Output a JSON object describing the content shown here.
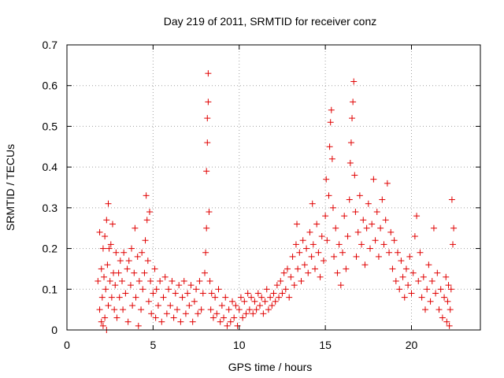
{
  "chart_data": {
    "type": "scatter",
    "title": "Day 219 of 2011, SRMTID for receiver conz",
    "xlabel": "GPS time / hours",
    "ylabel": "SRMTID / TECUs",
    "xlim": [
      0,
      24
    ],
    "ylim": [
      0,
      0.7
    ],
    "xticks": [
      0,
      5,
      10,
      15,
      20
    ],
    "yticks": [
      0,
      0.1,
      0.2,
      0.3,
      0.4,
      0.5,
      0.6,
      0.7
    ],
    "grid": true,
    "marker": "+",
    "color": "#e00000",
    "series": [
      {
        "name": "SRMTID",
        "points": [
          [
            1.8,
            0.12
          ],
          [
            1.9,
            0.05
          ],
          [
            1.9,
            0.24
          ],
          [
            2.0,
            0.02
          ],
          [
            2.0,
            0.15
          ],
          [
            2.05,
            0.08
          ],
          [
            2.1,
            0.2
          ],
          [
            2.1,
            0.01
          ],
          [
            2.15,
            0.13
          ],
          [
            2.2,
            0.03
          ],
          [
            2.2,
            0.23
          ],
          [
            2.25,
            0.1
          ],
          [
            2.3,
            0.27
          ],
          [
            2.3,
            0.0
          ],
          [
            2.35,
            0.16
          ],
          [
            2.4,
            0.31
          ],
          [
            2.4,
            0.06
          ],
          [
            2.45,
            0.2
          ],
          [
            2.5,
            0.12
          ],
          [
            2.55,
            0.21
          ],
          [
            2.6,
            0.08
          ],
          [
            2.65,
            0.26
          ],
          [
            2.7,
            0.14
          ],
          [
            2.75,
            0.05
          ],
          [
            2.8,
            0.11
          ],
          [
            2.85,
            0.19
          ],
          [
            2.9,
            0.03
          ],
          [
            3.0,
            0.14
          ],
          [
            3.05,
            0.08
          ],
          [
            3.1,
            0.17
          ],
          [
            3.2,
            0.12
          ],
          [
            3.25,
            0.05
          ],
          [
            3.3,
            0.19
          ],
          [
            3.4,
            0.09
          ],
          [
            3.5,
            0.15
          ],
          [
            3.55,
            0.02
          ],
          [
            3.6,
            0.17
          ],
          [
            3.7,
            0.11
          ],
          [
            3.75,
            0.2
          ],
          [
            3.8,
            0.06
          ],
          [
            3.9,
            0.14
          ],
          [
            3.95,
            0.25
          ],
          [
            4.0,
            0.08
          ],
          [
            4.1,
            0.18
          ],
          [
            4.15,
            0.01
          ],
          [
            4.2,
            0.12
          ],
          [
            4.3,
            0.05
          ],
          [
            4.35,
            0.19
          ],
          [
            4.4,
            0.1
          ],
          [
            4.5,
            0.14
          ],
          [
            4.55,
            0.22
          ],
          [
            4.6,
            0.33
          ],
          [
            4.65,
            0.27
          ],
          [
            4.7,
            0.17
          ],
          [
            4.75,
            0.07
          ],
          [
            4.8,
            0.29
          ],
          [
            4.85,
            0.12
          ],
          [
            4.9,
            0.04
          ],
          [
            5.0,
            0.09
          ],
          [
            5.1,
            0.15
          ],
          [
            5.15,
            0.03
          ],
          [
            5.2,
            0.1
          ],
          [
            5.3,
            0.06
          ],
          [
            5.4,
            0.12
          ],
          [
            5.5,
            0.02
          ],
          [
            5.6,
            0.08
          ],
          [
            5.7,
            0.13
          ],
          [
            5.8,
            0.04
          ],
          [
            5.9,
            0.1
          ],
          [
            6.0,
            0.06
          ],
          [
            6.1,
            0.12
          ],
          [
            6.2,
            0.03
          ],
          [
            6.3,
            0.09
          ],
          [
            6.4,
            0.05
          ],
          [
            6.5,
            0.11
          ],
          [
            6.6,
            0.02
          ],
          [
            6.7,
            0.08
          ],
          [
            6.8,
            0.12
          ],
          [
            6.9,
            0.04
          ],
          [
            7.0,
            0.09
          ],
          [
            7.1,
            0.06
          ],
          [
            7.2,
            0.11
          ],
          [
            7.3,
            0.02
          ],
          [
            7.4,
            0.07
          ],
          [
            7.5,
            0.1
          ],
          [
            7.6,
            0.04
          ],
          [
            7.7,
            0.12
          ],
          [
            7.8,
            0.05
          ],
          [
            7.9,
            0.09
          ],
          [
            8.0,
            0.14
          ],
          [
            8.05,
            0.19
          ],
          [
            8.1,
            0.25
          ],
          [
            8.1,
            0.39
          ],
          [
            8.15,
            0.46
          ],
          [
            8.15,
            0.52
          ],
          [
            8.2,
            0.56
          ],
          [
            8.2,
            0.63
          ],
          [
            8.25,
            0.29
          ],
          [
            8.3,
            0.12
          ],
          [
            8.35,
            0.05
          ],
          [
            8.4,
            0.09
          ],
          [
            8.5,
            0.03
          ],
          [
            8.6,
            0.08
          ],
          [
            8.7,
            0.04
          ],
          [
            8.8,
            0.1
          ],
          [
            8.9,
            0.02
          ],
          [
            9.0,
            0.06
          ],
          [
            9.1,
            0.03
          ],
          [
            9.2,
            0.08
          ],
          [
            9.3,
            0.01
          ],
          [
            9.4,
            0.05
          ],
          [
            9.5,
            0.02
          ],
          [
            9.6,
            0.07
          ],
          [
            9.7,
            0.03
          ],
          [
            9.8,
            0.06
          ],
          [
            9.9,
            0.01
          ],
          [
            10.0,
            0.05
          ],
          [
            10.1,
            0.08
          ],
          [
            10.2,
            0.03
          ],
          [
            10.3,
            0.07
          ],
          [
            10.4,
            0.04
          ],
          [
            10.5,
            0.09
          ],
          [
            10.6,
            0.05
          ],
          [
            10.7,
            0.08
          ],
          [
            10.8,
            0.04
          ],
          [
            10.9,
            0.07
          ],
          [
            11.0,
            0.05
          ],
          [
            11.1,
            0.09
          ],
          [
            11.2,
            0.06
          ],
          [
            11.3,
            0.08
          ],
          [
            11.4,
            0.04
          ],
          [
            11.5,
            0.07
          ],
          [
            11.6,
            0.1
          ],
          [
            11.7,
            0.05
          ],
          [
            11.8,
            0.08
          ],
          [
            11.9,
            0.06
          ],
          [
            12.0,
            0.09
          ],
          [
            12.1,
            0.07
          ],
          [
            12.2,
            0.11
          ],
          [
            12.3,
            0.08
          ],
          [
            12.4,
            0.12
          ],
          [
            12.5,
            0.09
          ],
          [
            12.6,
            0.14
          ],
          [
            12.7,
            0.1
          ],
          [
            12.8,
            0.15
          ],
          [
            12.9,
            0.08
          ],
          [
            13.0,
            0.13
          ],
          [
            13.1,
            0.18
          ],
          [
            13.2,
            0.11
          ],
          [
            13.3,
            0.21
          ],
          [
            13.35,
            0.26
          ],
          [
            13.4,
            0.15
          ],
          [
            13.5,
            0.19
          ],
          [
            13.6,
            0.12
          ],
          [
            13.7,
            0.22
          ],
          [
            13.8,
            0.16
          ],
          [
            13.9,
            0.2
          ],
          [
            14.0,
            0.14
          ],
          [
            14.1,
            0.24
          ],
          [
            14.2,
            0.18
          ],
          [
            14.25,
            0.31
          ],
          [
            14.3,
            0.21
          ],
          [
            14.4,
            0.15
          ],
          [
            14.5,
            0.26
          ],
          [
            14.6,
            0.19
          ],
          [
            14.7,
            0.13
          ],
          [
            14.8,
            0.23
          ],
          [
            14.9,
            0.17
          ],
          [
            15.0,
            0.28
          ],
          [
            15.05,
            0.37
          ],
          [
            15.1,
            0.22
          ],
          [
            15.2,
            0.33
          ],
          [
            15.25,
            0.45
          ],
          [
            15.3,
            0.51
          ],
          [
            15.35,
            0.54
          ],
          [
            15.4,
            0.42
          ],
          [
            15.45,
            0.3
          ],
          [
            15.5,
            0.18
          ],
          [
            15.6,
            0.25
          ],
          [
            15.7,
            0.14
          ],
          [
            15.8,
            0.21
          ],
          [
            15.9,
            0.11
          ],
          [
            16.0,
            0.19
          ],
          [
            16.1,
            0.28
          ],
          [
            16.2,
            0.15
          ],
          [
            16.3,
            0.23
          ],
          [
            16.4,
            0.32
          ],
          [
            16.45,
            0.41
          ],
          [
            16.5,
            0.46
          ],
          [
            16.55,
            0.52
          ],
          [
            16.6,
            0.56
          ],
          [
            16.65,
            0.61
          ],
          [
            16.7,
            0.38
          ],
          [
            16.75,
            0.29
          ],
          [
            16.8,
            0.18
          ],
          [
            16.9,
            0.24
          ],
          [
            17.0,
            0.33
          ],
          [
            17.1,
            0.21
          ],
          [
            17.2,
            0.27
          ],
          [
            17.3,
            0.16
          ],
          [
            17.4,
            0.25
          ],
          [
            17.5,
            0.31
          ],
          [
            17.6,
            0.2
          ],
          [
            17.7,
            0.26
          ],
          [
            17.8,
            0.37
          ],
          [
            17.9,
            0.22
          ],
          [
            18.0,
            0.29
          ],
          [
            18.1,
            0.18
          ],
          [
            18.2,
            0.25
          ],
          [
            18.3,
            0.32
          ],
          [
            18.4,
            0.21
          ],
          [
            18.5,
            0.27
          ],
          [
            18.6,
            0.36
          ],
          [
            18.7,
            0.19
          ],
          [
            18.8,
            0.24
          ],
          [
            18.9,
            0.15
          ],
          [
            19.0,
            0.22
          ],
          [
            19.1,
            0.12
          ],
          [
            19.2,
            0.19
          ],
          [
            19.3,
            0.1
          ],
          [
            19.4,
            0.17
          ],
          [
            19.5,
            0.13
          ],
          [
            19.6,
            0.08
          ],
          [
            19.7,
            0.15
          ],
          [
            19.8,
            0.11
          ],
          [
            19.9,
            0.18
          ],
          [
            20.0,
            0.09
          ],
          [
            20.1,
            0.14
          ],
          [
            20.2,
            0.23
          ],
          [
            20.3,
            0.28
          ],
          [
            20.4,
            0.12
          ],
          [
            20.5,
            0.19
          ],
          [
            20.6,
            0.08
          ],
          [
            20.7,
            0.13
          ],
          [
            20.8,
            0.05
          ],
          [
            20.9,
            0.1
          ],
          [
            21.0,
            0.16
          ],
          [
            21.1,
            0.07
          ],
          [
            21.2,
            0.12
          ],
          [
            21.3,
            0.25
          ],
          [
            21.4,
            0.09
          ],
          [
            21.5,
            0.14
          ],
          [
            21.6,
            0.05
          ],
          [
            21.7,
            0.1
          ],
          [
            21.8,
            0.03
          ],
          [
            21.9,
            0.08
          ],
          [
            22.0,
            0.13
          ],
          [
            22.05,
            0.02
          ],
          [
            22.1,
            0.07
          ],
          [
            22.15,
            0.11
          ],
          [
            22.2,
            0.01
          ],
          [
            22.25,
            0.05
          ],
          [
            22.3,
            0.1
          ],
          [
            22.35,
            0.32
          ],
          [
            22.4,
            0.21
          ],
          [
            22.45,
            0.25
          ]
        ]
      }
    ]
  }
}
